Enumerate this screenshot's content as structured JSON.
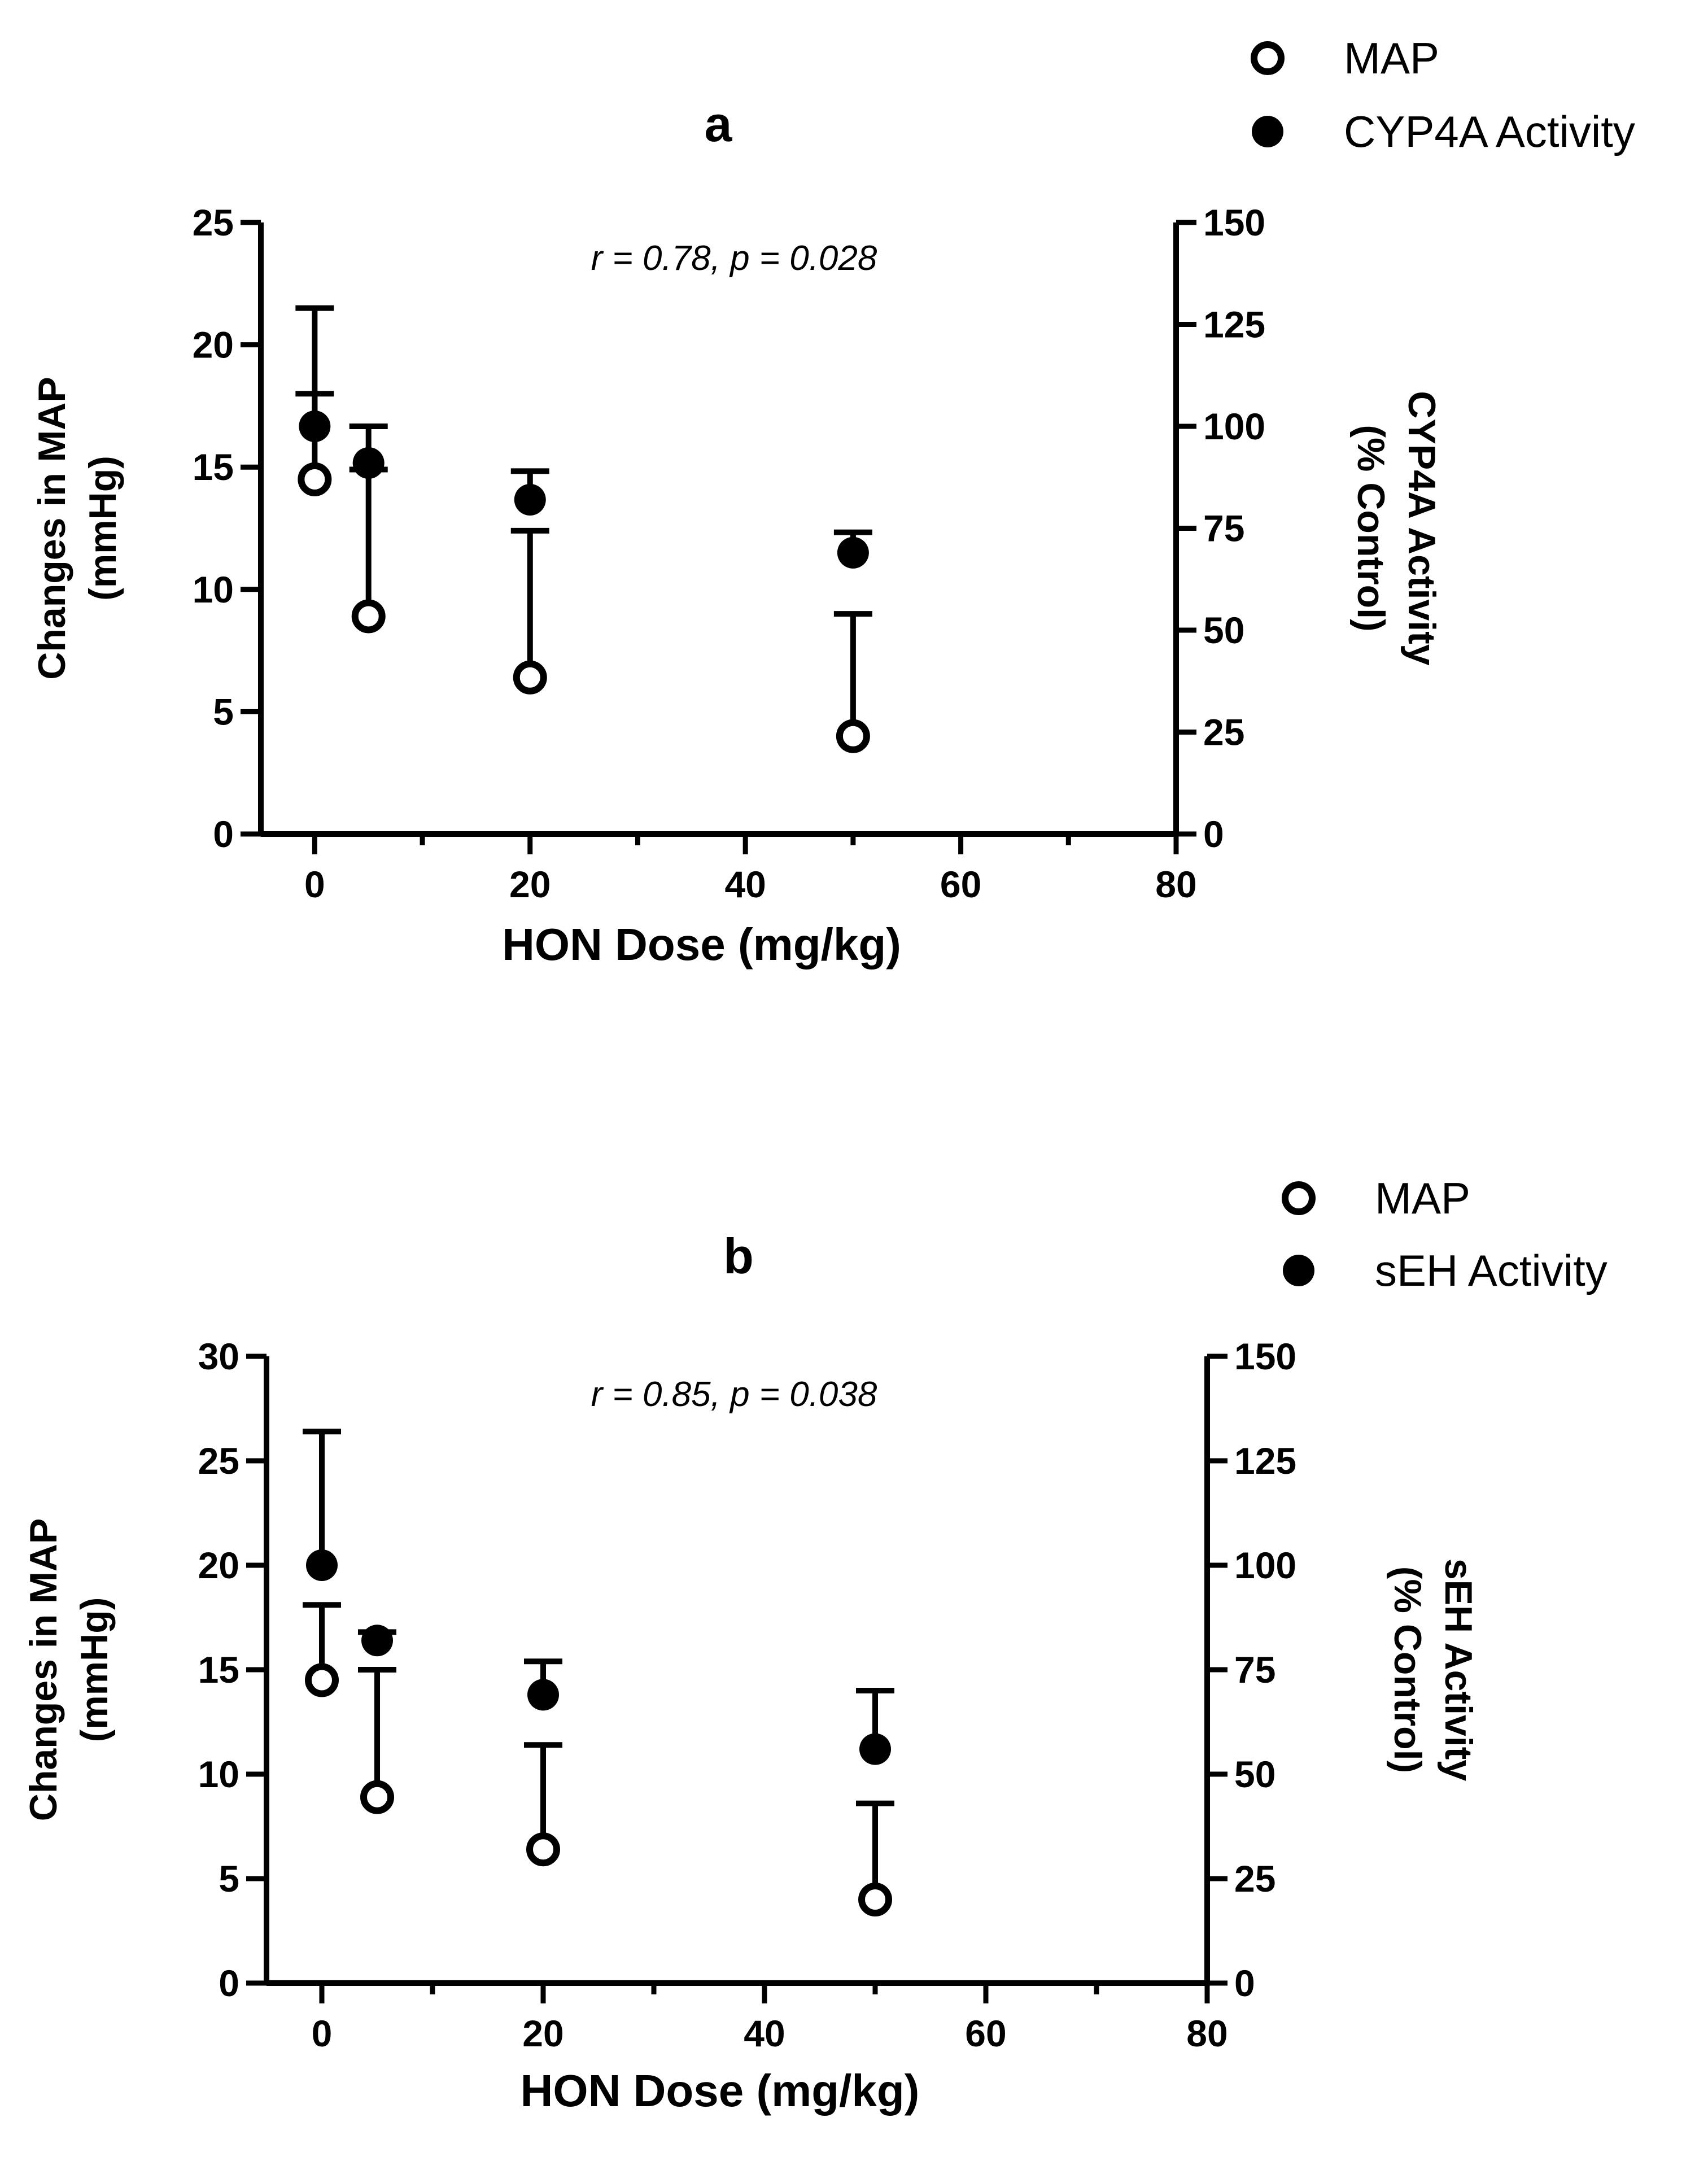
{
  "chart_data": [
    {
      "type": "scatter",
      "panel": "a",
      "annotation": "r = 0.78, p = 0.028",
      "xlabel": "HON Dose (mg/kg)",
      "ylabel_lines": [
        "Changes in MAP",
        "(mmHg)"
      ],
      "y2label_lines": [
        "CYP4A Activity",
        "(% Control)"
      ],
      "xlim": [
        -5,
        80
      ],
      "xticks": [
        0,
        20,
        40,
        60,
        80
      ],
      "ylim": [
        0,
        25
      ],
      "yticks": [
        0,
        5,
        10,
        15,
        20,
        25
      ],
      "y2lim": [
        0,
        150
      ],
      "y2ticks": [
        0,
        25,
        50,
        75,
        100,
        125,
        150
      ],
      "legend_position": "top-right",
      "series": [
        {
          "name": "MAP",
          "axis": "left",
          "marker": "open-circle",
          "x": [
            0,
            5,
            20,
            50
          ],
          "y": [
            14.5,
            8.9,
            6.4,
            4.0
          ],
          "error_upper": [
            21.5,
            14.9,
            12.4,
            9.0
          ]
        },
        {
          "name": "CYP4A Activity",
          "axis": "right",
          "marker": "filled-circle",
          "x": [
            0,
            5,
            20,
            50
          ],
          "y": [
            100,
            91,
            82,
            69
          ],
          "error_upper": [
            108,
            100,
            89,
            74
          ]
        }
      ]
    },
    {
      "type": "scatter",
      "panel": "b",
      "annotation": "r = 0.85, p = 0.038",
      "xlabel": "HON Dose (mg/kg)",
      "ylabel_lines": [
        "Changes in MAP",
        "(mmHg)"
      ],
      "y2label_lines": [
        "sEH Activity",
        "(% Control)"
      ],
      "xlim": [
        -5,
        80
      ],
      "xticks": [
        0,
        20,
        40,
        60,
        80
      ],
      "ylim": [
        0,
        30
      ],
      "yticks": [
        0,
        5,
        10,
        15,
        20,
        25,
        30
      ],
      "y2lim": [
        0,
        150
      ],
      "y2ticks": [
        0,
        25,
        50,
        75,
        100,
        125,
        150
      ],
      "legend_position": "top-right",
      "series": [
        {
          "name": "MAP",
          "axis": "left",
          "marker": "open-circle",
          "x": [
            0,
            5,
            20,
            50
          ],
          "y": [
            14.5,
            8.9,
            6.4,
            4.0
          ],
          "error_upper": [
            18.1,
            15.0,
            11.4,
            8.6
          ]
        },
        {
          "name": "sEH Activity",
          "axis": "right",
          "marker": "filled-circle",
          "x": [
            0,
            5,
            20,
            50
          ],
          "y": [
            100,
            82,
            69,
            56
          ],
          "error_upper": [
            132,
            84,
            77,
            70
          ]
        }
      ]
    }
  ]
}
